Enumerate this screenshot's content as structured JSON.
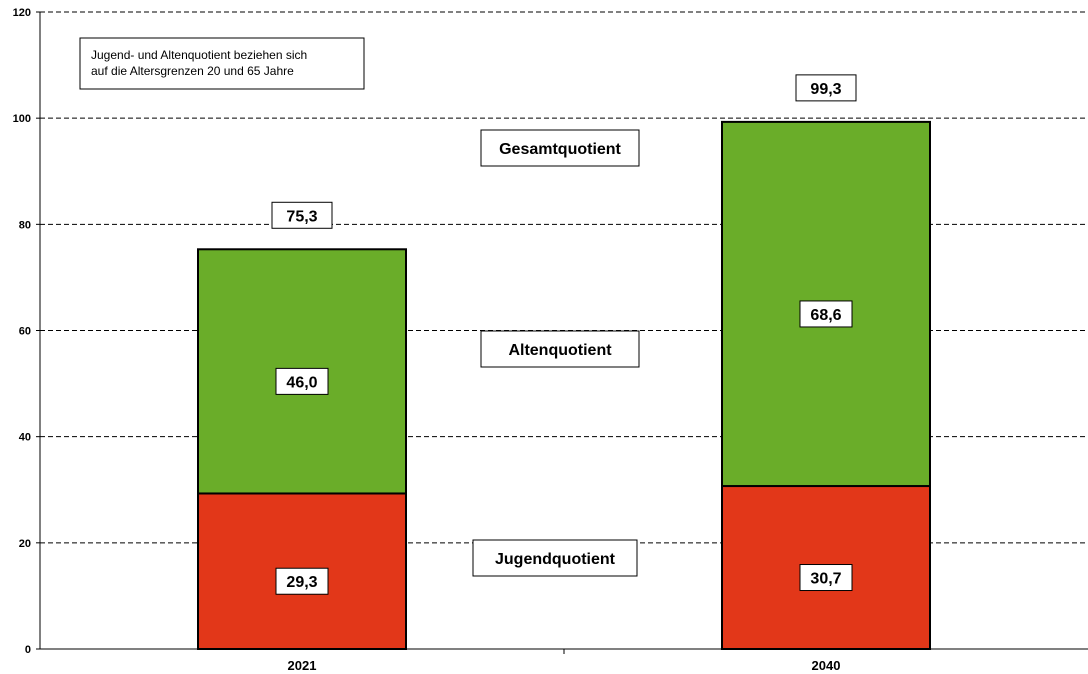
{
  "chart_data": {
    "type": "bar",
    "stacked": true,
    "categories": [
      "2021",
      "2040"
    ],
    "series": [
      {
        "name": "Jugendquotient",
        "values": [
          29.3,
          30.7
        ],
        "color": "#e23719"
      },
      {
        "name": "Altenquotient",
        "values": [
          46.0,
          68.6
        ],
        "color": "#6aad29"
      }
    ],
    "totals": [
      75.3,
      99.3
    ],
    "value_labels": {
      "jugend": [
        "29,3",
        "30,7"
      ],
      "alten": [
        "46,0",
        "68,6"
      ],
      "gesamt": [
        "75,3",
        "99,3"
      ]
    },
    "series_labels": {
      "gesamt": "Gesamtquotient",
      "alten": "Altenquotient",
      "jugend": "Jugendquotient"
    },
    "yticks": [
      "0",
      "20",
      "40",
      "60",
      "80",
      "100",
      "120"
    ],
    "ylim": [
      0,
      120
    ],
    "grid": "dashed horizontal",
    "note_lines": [
      "Jugend- und Altenquotient beziehen sich",
      "auf die Altersgrenzen 20 und 65 Jahre"
    ],
    "xlabel": "",
    "ylabel": ""
  }
}
